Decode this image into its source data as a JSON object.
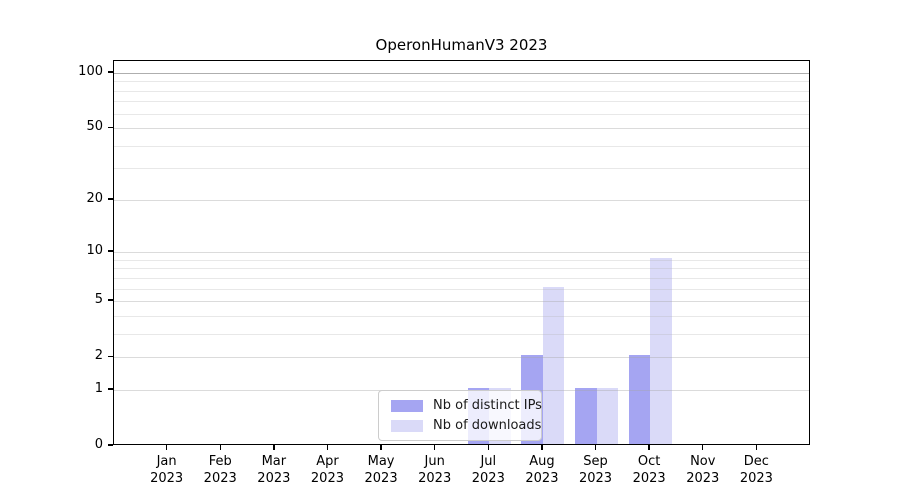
{
  "chart_data": {
    "type": "bar",
    "title": "OperonHumanV3 2023",
    "categories": [
      "Jan 2023",
      "Feb 2023",
      "Mar 2023",
      "Apr 2023",
      "May 2023",
      "Jun 2023",
      "Jul 2023",
      "Aug 2023",
      "Sep 2023",
      "Oct 2023",
      "Nov 2023",
      "Dec 2023"
    ],
    "series": [
      {
        "name": "Nb of distinct IPs",
        "color": "#a5a5f2",
        "values": [
          0,
          0,
          0,
          0,
          0,
          0,
          1,
          2,
          1,
          2,
          0,
          0
        ]
      },
      {
        "name": "Nb of downloads",
        "color": "#dadaf8",
        "values": [
          0,
          0,
          0,
          0,
          0,
          0,
          1,
          6,
          1,
          9,
          0,
          0
        ]
      }
    ],
    "yscale": "log10(1+x)",
    "y_ticks": [
      0,
      1,
      2,
      5,
      10,
      20,
      50,
      100
    ],
    "y_minor_ticks": [
      3,
      4,
      6,
      7,
      8,
      9,
      30,
      40,
      60,
      70,
      80,
      90
    ],
    "ylim": [
      0,
      116
    ],
    "xlabel": "",
    "ylabel": "",
    "grid": "horizontal",
    "legend_position": "lower center"
  },
  "colors": {
    "background": "#ffffff",
    "axis": "#000000",
    "gridline": "#e2e2e2",
    "gridline_top": "#bdbdbd",
    "legend_border": "#cccccc"
  }
}
